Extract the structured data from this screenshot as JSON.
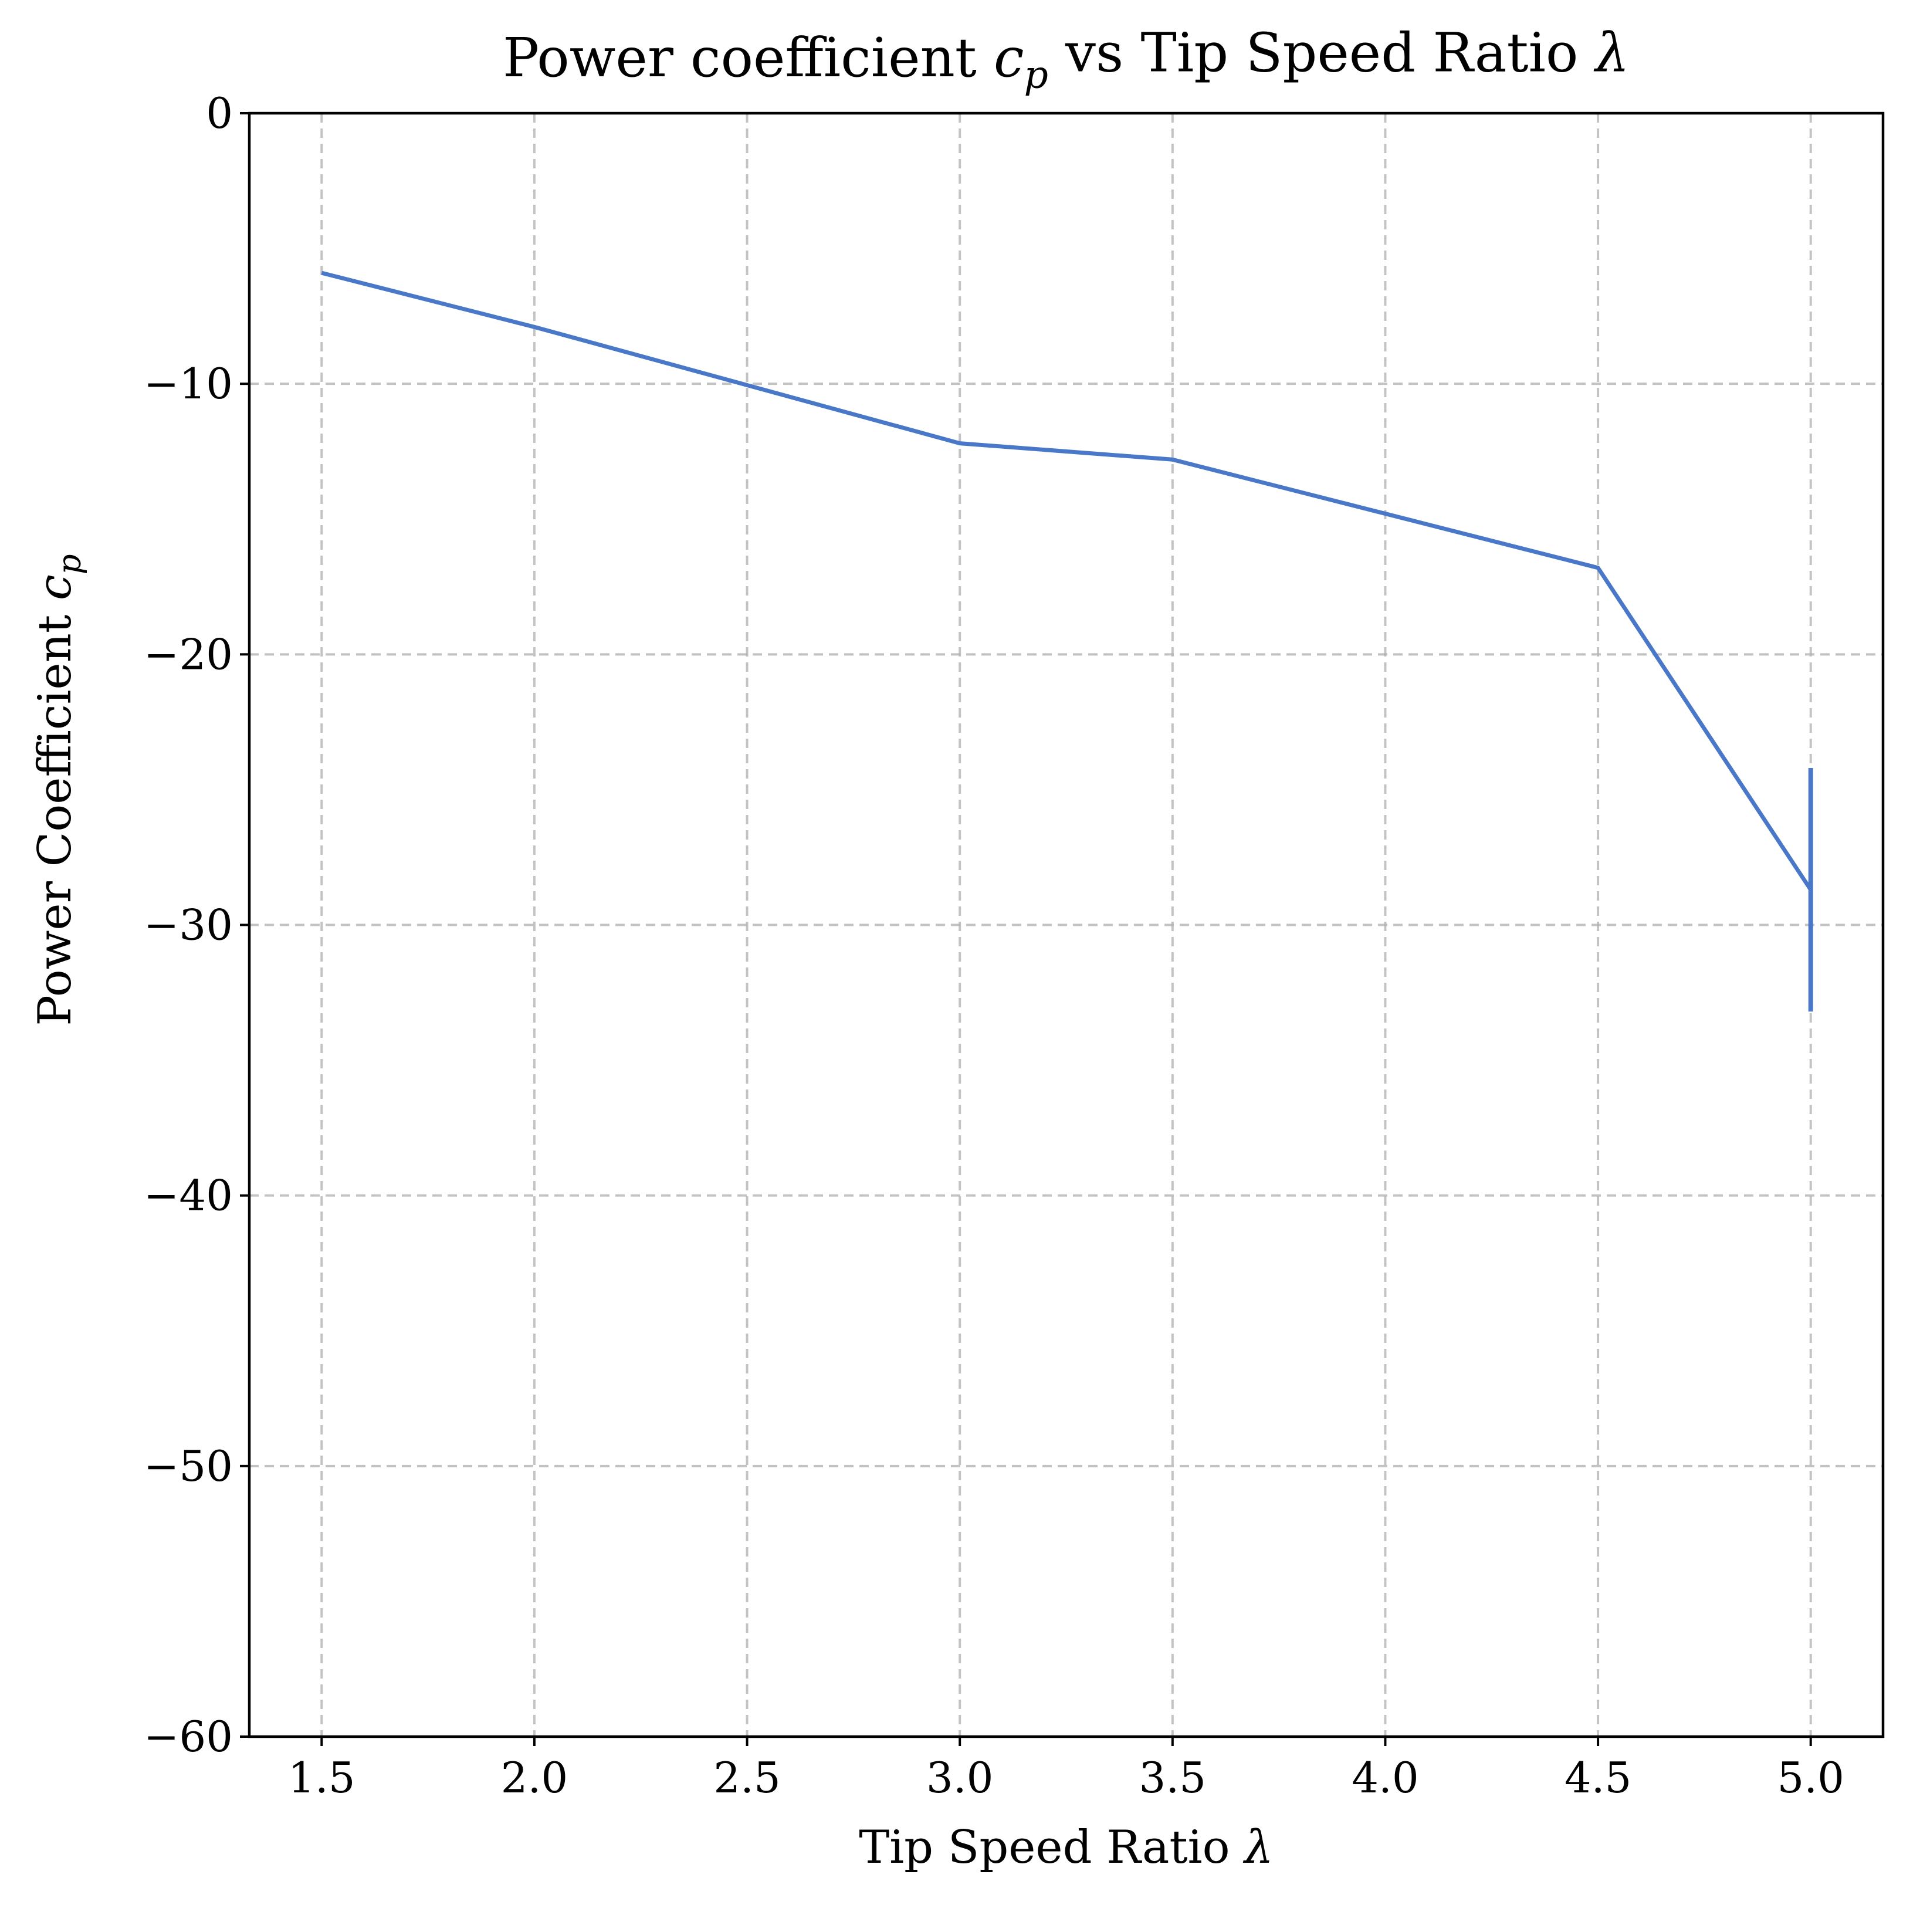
{
  "chart_data": {
    "type": "line",
    "title": "Power coefficient c_p vs Tip Speed Ratio λ",
    "xlabel": "Tip Speed Ratio λ",
    "ylabel": "Power Coefficient c_p",
    "xlim": [
      1.33,
      5.17
    ],
    "ylim": [
      -60,
      0
    ],
    "xticks": [
      1.5,
      2.0,
      2.5,
      3.0,
      3.5,
      4.0,
      4.5,
      5.0
    ],
    "xtick_labels": [
      "1.5",
      "2.0",
      "2.5",
      "3.0",
      "3.5",
      "4.0",
      "4.5",
      "5.0"
    ],
    "yticks": [
      0,
      -10,
      -20,
      -30,
      -40,
      -50,
      -60
    ],
    "ytick_labels": [
      "0",
      "−10",
      "−20",
      "−30",
      "−40",
      "−50",
      "−60"
    ],
    "grid": true,
    "series": [
      {
        "color": "#4a78c8",
        "x": [
          1.5,
          2.0,
          3.0,
          3.5,
          4.5,
          5.0
        ],
        "y": [
          -5.9,
          -7.9,
          -12.2,
          -12.8,
          -16.8,
          -28.7
        ],
        "error_bars": [
          {
            "x": 5.0,
            "low": -33.2,
            "high": -24.2
          }
        ]
      }
    ]
  }
}
